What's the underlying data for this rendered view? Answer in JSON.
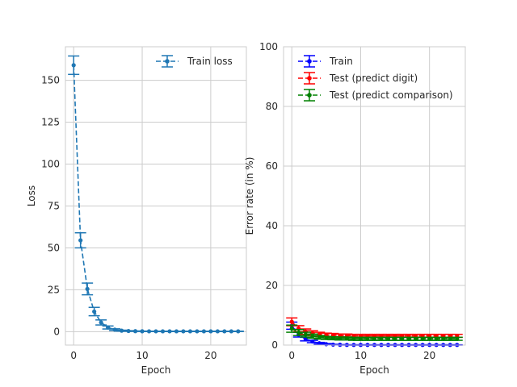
{
  "chart_data": [
    {
      "type": "line",
      "style": "errorbar, dashed line with circle markers",
      "title": "",
      "xlabel": "Epoch",
      "ylabel": "Loss",
      "xlim": [
        -1.2,
        25.2
      ],
      "ylim": [
        -8,
        170
      ],
      "xticks": [
        0,
        10,
        20
      ],
      "yticks": [
        0,
        25,
        50,
        75,
        100,
        125,
        150
      ],
      "grid": true,
      "legend_position": "top-right",
      "x": [
        0,
        1,
        2,
        3,
        4,
        5,
        6,
        7,
        8,
        9,
        10,
        11,
        12,
        13,
        14,
        15,
        16,
        17,
        18,
        19,
        20,
        21,
        22,
        23,
        24
      ],
      "series": [
        {
          "name": "Train loss",
          "color": "#1f77b4",
          "values": [
            159,
            54.5,
            25.5,
            12,
            5.5,
            2.5,
            1.2,
            0.6,
            0.4,
            0.3,
            0.25,
            0.2,
            0.2,
            0.2,
            0.2,
            0.2,
            0.2,
            0.2,
            0.2,
            0.2,
            0.2,
            0.2,
            0.2,
            0.2,
            0.2
          ],
          "errors": [
            5.5,
            4.5,
            3.5,
            2.5,
            1.5,
            0.9,
            0.5,
            0.3,
            0.2,
            0.1,
            0.1,
            0.1,
            0.1,
            0.1,
            0.1,
            0.1,
            0.1,
            0.1,
            0.1,
            0.1,
            0.1,
            0.1,
            0.1,
            0.1,
            0.1
          ]
        }
      ]
    },
    {
      "type": "line",
      "style": "errorbar, dashed lines with circle markers",
      "title": "",
      "xlabel": "Epoch",
      "ylabel": "Error rate (in %)",
      "xlim": [
        -1.2,
        25.2
      ],
      "ylim": [
        0,
        100
      ],
      "xticks": [
        0,
        10,
        20
      ],
      "yticks": [
        0,
        20,
        40,
        60,
        80,
        100
      ],
      "grid": true,
      "legend_position": "top-left",
      "x": [
        0,
        1,
        2,
        3,
        4,
        5,
        6,
        7,
        8,
        9,
        10,
        11,
        12,
        13,
        14,
        15,
        16,
        17,
        18,
        19,
        20,
        21,
        22,
        23,
        24
      ],
      "series": [
        {
          "name": "Train",
          "color": "#0000ff",
          "values": [
            6.5,
            3.5,
            2.0,
            1.2,
            0.6,
            0.3,
            0.15,
            0.1,
            0.05,
            0.05,
            0.05,
            0.05,
            0.05,
            0.05,
            0.05,
            0.05,
            0.05,
            0.05,
            0.05,
            0.05,
            0.05,
            0.05,
            0.05,
            0.05,
            0.05
          ],
          "errors": [
            1.2,
            0.8,
            0.6,
            0.4,
            0.3,
            0.2,
            0.1,
            0.05,
            0.05,
            0.05,
            0.05,
            0.05,
            0.05,
            0.05,
            0.05,
            0.05,
            0.05,
            0.05,
            0.05,
            0.05,
            0.05,
            0.05,
            0.05,
            0.05,
            0.05
          ]
        },
        {
          "name": "Test (predict digit)",
          "color": "#ff0000",
          "values": [
            7.8,
            5.5,
            4.5,
            4.0,
            3.6,
            3.4,
            3.3,
            3.2,
            3.2,
            3.1,
            3.1,
            3.1,
            3.1,
            3.1,
            3.1,
            3.1,
            3.1,
            3.1,
            3.1,
            3.1,
            3.1,
            3.1,
            3.1,
            3.1,
            3.1
          ],
          "errors": [
            1.3,
            1.0,
            0.9,
            0.8,
            0.7,
            0.6,
            0.6,
            0.5,
            0.5,
            0.5,
            0.5,
            0.5,
            0.5,
            0.5,
            0.5,
            0.5,
            0.5,
            0.5,
            0.5,
            0.5,
            0.5,
            0.5,
            0.5,
            0.5,
            0.5
          ]
        },
        {
          "name": "Test (predict comparison)",
          "color": "#008000",
          "values": [
            5.5,
            4.2,
            3.5,
            3.0,
            2.6,
            2.4,
            2.3,
            2.2,
            2.2,
            2.1,
            2.1,
            2.1,
            2.1,
            2.1,
            2.1,
            2.1,
            2.1,
            2.1,
            2.1,
            2.1,
            2.1,
            2.1,
            2.1,
            2.1,
            2.1
          ],
          "errors": [
            1.2,
            1.0,
            0.8,
            0.7,
            0.6,
            0.5,
            0.5,
            0.5,
            0.5,
            0.5,
            0.5,
            0.5,
            0.5,
            0.5,
            0.5,
            0.5,
            0.5,
            0.5,
            0.5,
            0.5,
            0.5,
            0.5,
            0.5,
            0.5,
            0.5
          ]
        }
      ]
    }
  ]
}
